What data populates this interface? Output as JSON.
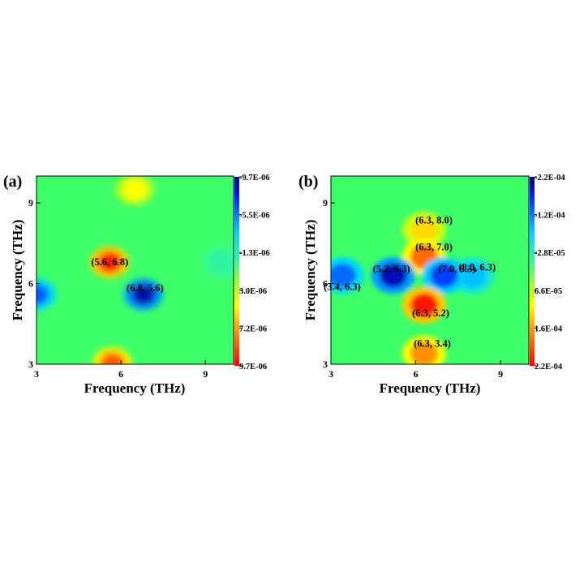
{
  "chart_data": [
    {
      "type": "heatmap",
      "panel_label": "(a)",
      "xlabel": "Frequency (THz)",
      "ylabel": "Frequency (THz)",
      "xlim": [
        3,
        10
      ],
      "ylim": [
        3,
        10
      ],
      "xticks": [
        "3",
        "6",
        "9"
      ],
      "yticks": [
        "3",
        "6",
        "9"
      ],
      "colorbar": {
        "ticks": [
          "-9.7E-06",
          "-5.5E-06",
          "-1.3E-06",
          "3.0E-06",
          "7.2E-06",
          "9.7E-06"
        ],
        "values": [
          -9.7e-06,
          -5.5e-06,
          -1.3e-06,
          3e-06,
          7.2e-06,
          9.7e-06
        ]
      },
      "peaks": [
        {
          "label": "(5.6, 6.8)",
          "x": 5.6,
          "y": 6.8,
          "value": 9e-06
        },
        {
          "label": "(6.8, 5.6)",
          "x": 6.8,
          "y": 5.6,
          "value": -9e-06
        }
      ],
      "features": [
        {
          "x": 3.0,
          "y": 5.6,
          "value": -6.5e-06
        },
        {
          "x": 5.7,
          "y": 3.05,
          "value": 7.5e-06
        },
        {
          "x": 6.5,
          "y": 9.5,
          "value": 3.5e-06
        },
        {
          "x": 9.6,
          "y": 6.8,
          "value": -1.5e-06
        }
      ]
    },
    {
      "type": "heatmap",
      "panel_label": "(b)",
      "xlabel": "Frequency (THz)",
      "ylabel": "Frequency (THz)",
      "xlim": [
        3,
        10
      ],
      "ylim": [
        3,
        10
      ],
      "xticks": [
        "3",
        "6",
        "9"
      ],
      "yticks": [
        "3",
        "6",
        "9"
      ],
      "colorbar": {
        "ticks": [
          "-2.2E-04",
          "-1.2E-04",
          "-2.8E-05",
          "6.6E-05",
          "1.6E-04",
          "2.2E-04"
        ],
        "values": [
          -0.00022,
          -0.00012,
          -2.8e-05,
          6.6e-05,
          0.00016,
          0.00022
        ]
      },
      "peaks": [
        {
          "label": "(6.3, 8.0)",
          "x": 6.3,
          "y": 8.0,
          "value": 0.0001
        },
        {
          "label": "(6.3, 7.0)",
          "x": 6.3,
          "y": 7.0,
          "value": 0.00016
        },
        {
          "label": "(5.2, 6.3)",
          "x": 5.2,
          "y": 6.3,
          "value": -0.0002
        },
        {
          "label": "(8.0, 6.3)",
          "x": 8.0,
          "y": 6.3,
          "value": -0.0001
        },
        {
          "label": "(7.0, 6.3)",
          "x": 7.0,
          "y": 6.3,
          "value": -0.00016
        },
        {
          "label": "(3.4, 6.3)",
          "x": 3.4,
          "y": 6.3,
          "value": -0.00014
        },
        {
          "label": "(6.3, 5.2)",
          "x": 6.3,
          "y": 5.2,
          "value": 0.00021
        },
        {
          "label": "(6.3, 3.4)",
          "x": 6.3,
          "y": 3.4,
          "value": 0.00014
        }
      ],
      "features": []
    }
  ]
}
